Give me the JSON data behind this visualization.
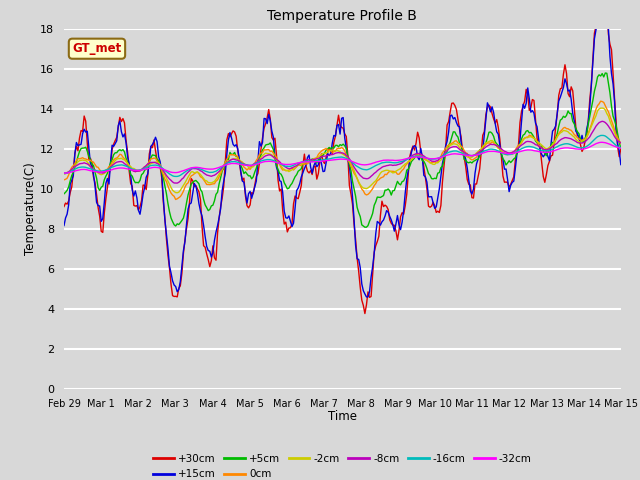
{
  "title": "Temperature Profile B",
  "xlabel": "Time",
  "ylabel": "Temperature(C)",
  "ylim": [
    0,
    18
  ],
  "annotation_text": "GT_met",
  "background_color": "#d8d8d8",
  "plot_bg_color": "#d8d8d8",
  "grid_color": "white",
  "series": [
    {
      "label": "+30cm",
      "color": "#dd0000",
      "lw": 1.0
    },
    {
      "label": "+15cm",
      "color": "#0000dd",
      "lw": 1.0
    },
    {
      "label": "+5cm",
      "color": "#00bb00",
      "lw": 1.0
    },
    {
      "label": "0cm",
      "color": "#ff8800",
      "lw": 1.0
    },
    {
      "label": "-2cm",
      "color": "#cccc00",
      "lw": 1.0
    },
    {
      "label": "-8cm",
      "color": "#bb00bb",
      "lw": 1.0
    },
    {
      "label": "-16cm",
      "color": "#00bbbb",
      "lw": 1.0
    },
    {
      "label": "-32cm",
      "color": "#ff00ff",
      "lw": 1.0
    }
  ],
  "xtick_labels": [
    "Feb 29",
    "Mar 1",
    "Mar 2",
    "Mar 3",
    "Mar 4",
    "Mar 5",
    "Mar 6",
    "Mar 7",
    "Mar 8",
    "Mar 9",
    "Mar 10",
    "Mar 11",
    "Mar 12",
    "Mar 13",
    "Mar 14",
    "Mar 15"
  ],
  "xtick_positions": [
    0,
    1,
    2,
    3,
    4,
    5,
    6,
    7,
    8,
    9,
    10,
    11,
    12,
    13,
    14,
    15
  ]
}
